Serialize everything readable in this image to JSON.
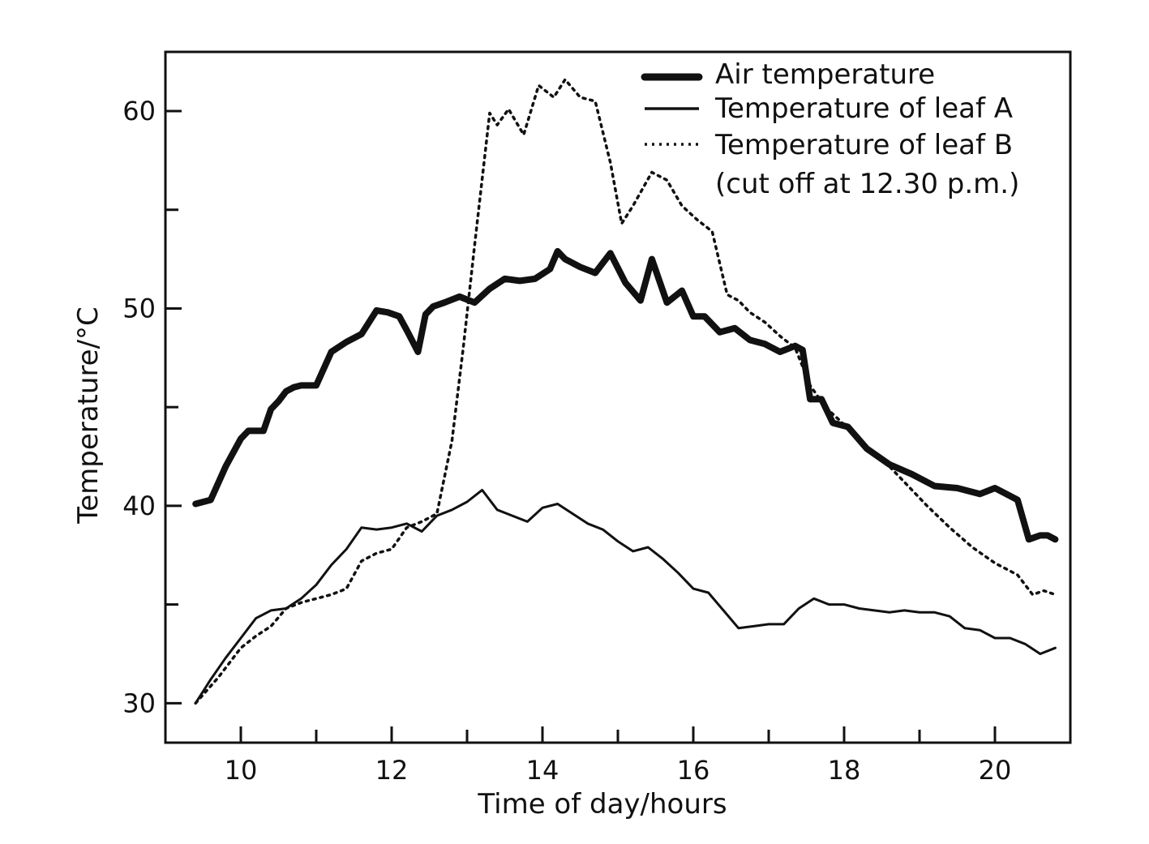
{
  "chart_data": {
    "type": "line",
    "xlabel": "Time of day/hours",
    "ylabel": "Temperature/°C",
    "xlim": [
      9,
      21
    ],
    "ylim": [
      28,
      63
    ],
    "xticks_major": [
      10,
      12,
      14,
      16,
      18,
      20
    ],
    "xticks_minor": [
      11,
      13,
      15,
      17,
      19
    ],
    "yticks_major": [
      30,
      40,
      50,
      60
    ],
    "yticks_minor": [
      35,
      45,
      55
    ],
    "grid": false,
    "legend_position": "top-right",
    "legend_note": "(cut off at 12.30 p.m.)",
    "colors": {
      "ink": "#111111",
      "background": "#ffffff"
    },
    "series": [
      {
        "name": "Air temperature",
        "style": "thick-solid",
        "x": [
          9.4,
          9.6,
          9.8,
          10.0,
          10.1,
          10.2,
          10.3,
          10.4,
          10.5,
          10.6,
          10.7,
          10.8,
          11.0,
          11.2,
          11.4,
          11.6,
          11.8,
          11.95,
          12.1,
          12.2,
          12.35,
          12.45,
          12.55,
          12.7,
          12.9,
          13.1,
          13.3,
          13.5,
          13.7,
          13.9,
          14.1,
          14.2,
          14.3,
          14.5,
          14.7,
          14.9,
          15.1,
          15.3,
          15.45,
          15.65,
          15.85,
          16.0,
          16.15,
          16.35,
          16.55,
          16.75,
          16.95,
          17.15,
          17.35,
          17.45,
          17.55,
          17.7,
          17.85,
          18.05,
          18.3,
          18.6,
          18.9,
          19.2,
          19.5,
          19.8,
          20.0,
          20.1,
          20.3,
          20.45,
          20.6,
          20.7,
          20.8
        ],
        "values": [
          40.1,
          40.3,
          42.0,
          43.4,
          43.8,
          43.8,
          43.8,
          44.9,
          45.3,
          45.8,
          46.0,
          46.1,
          46.1,
          47.8,
          48.3,
          48.7,
          49.9,
          49.8,
          49.6,
          48.9,
          47.8,
          49.7,
          50.1,
          50.3,
          50.6,
          50.3,
          51.0,
          51.5,
          51.4,
          51.5,
          52.0,
          52.9,
          52.5,
          52.1,
          51.8,
          52.8,
          51.3,
          50.4,
          52.5,
          50.3,
          50.9,
          49.6,
          49.6,
          48.8,
          49.0,
          48.4,
          48.2,
          47.8,
          48.1,
          47.9,
          45.4,
          45.4,
          44.2,
          44.0,
          42.9,
          42.1,
          41.6,
          41.0,
          40.9,
          40.6,
          40.9,
          40.7,
          40.3,
          38.3,
          38.5,
          38.5,
          38.3
        ]
      },
      {
        "name": "Temperature of leaf A",
        "style": "thin-solid",
        "x": [
          9.4,
          9.6,
          9.8,
          10.0,
          10.2,
          10.4,
          10.6,
          10.8,
          11.0,
          11.2,
          11.4,
          11.6,
          11.8,
          12.0,
          12.2,
          12.4,
          12.6,
          12.8,
          13.0,
          13.2,
          13.4,
          13.6,
          13.8,
          14.0,
          14.2,
          14.4,
          14.6,
          14.8,
          15.0,
          15.2,
          15.4,
          15.6,
          15.8,
          16.0,
          16.2,
          16.4,
          16.6,
          16.8,
          17.0,
          17.2,
          17.4,
          17.6,
          17.8,
          18.0,
          18.2,
          18.4,
          18.6,
          18.8,
          19.0,
          19.2,
          19.4,
          19.6,
          19.8,
          20.0,
          20.2,
          20.4,
          20.6,
          20.8
        ],
        "values": [
          30.0,
          31.2,
          32.3,
          33.3,
          34.3,
          34.7,
          34.8,
          35.3,
          36.0,
          37.0,
          37.8,
          38.9,
          38.8,
          38.9,
          39.1,
          38.7,
          39.5,
          39.8,
          40.2,
          40.8,
          39.8,
          39.5,
          39.2,
          39.9,
          40.1,
          39.6,
          39.1,
          38.8,
          38.2,
          37.7,
          37.9,
          37.3,
          36.6,
          35.8,
          35.6,
          34.7,
          33.8,
          33.9,
          34.0,
          34.0,
          34.8,
          35.3,
          35.0,
          35.0,
          34.8,
          34.7,
          34.6,
          34.7,
          34.6,
          34.6,
          34.4,
          33.8,
          33.7,
          33.3,
          33.3,
          33.0,
          32.5,
          32.8
        ]
      },
      {
        "name": "Temperature of leaf B",
        "style": "dotted",
        "x": [
          9.4,
          9.7,
          10.0,
          10.2,
          10.4,
          10.6,
          10.8,
          11.0,
          11.2,
          11.4,
          11.6,
          11.8,
          12.0,
          12.2,
          12.4,
          12.6,
          12.8,
          12.95,
          13.1,
          13.3,
          13.4,
          13.55,
          13.75,
          13.95,
          14.15,
          14.3,
          14.5,
          14.7,
          14.9,
          15.05,
          15.2,
          15.45,
          15.65,
          15.85,
          16.05,
          16.25,
          16.45,
          16.6,
          16.75,
          16.95,
          17.15,
          17.35,
          17.55,
          17.75,
          17.95,
          18.2,
          18.5,
          18.8,
          19.1,
          19.4,
          19.7,
          20.0,
          20.3,
          20.5,
          20.65,
          20.8
        ],
        "values": [
          30.0,
          31.3,
          32.8,
          33.4,
          33.9,
          34.8,
          35.1,
          35.3,
          35.5,
          35.8,
          37.2,
          37.6,
          37.8,
          38.9,
          39.2,
          39.6,
          43.3,
          48.0,
          53.2,
          59.9,
          59.3,
          60.1,
          58.8,
          61.3,
          60.7,
          61.6,
          60.7,
          60.5,
          57.4,
          54.3,
          55.2,
          56.9,
          56.5,
          55.2,
          54.5,
          53.9,
          50.7,
          50.4,
          49.8,
          49.3,
          48.6,
          48.0,
          46.1,
          45.0,
          44.3,
          43.3,
          42.4,
          41.2,
          40.0,
          38.9,
          37.9,
          37.1,
          36.5,
          35.5,
          35.7,
          35.5
        ]
      }
    ]
  }
}
